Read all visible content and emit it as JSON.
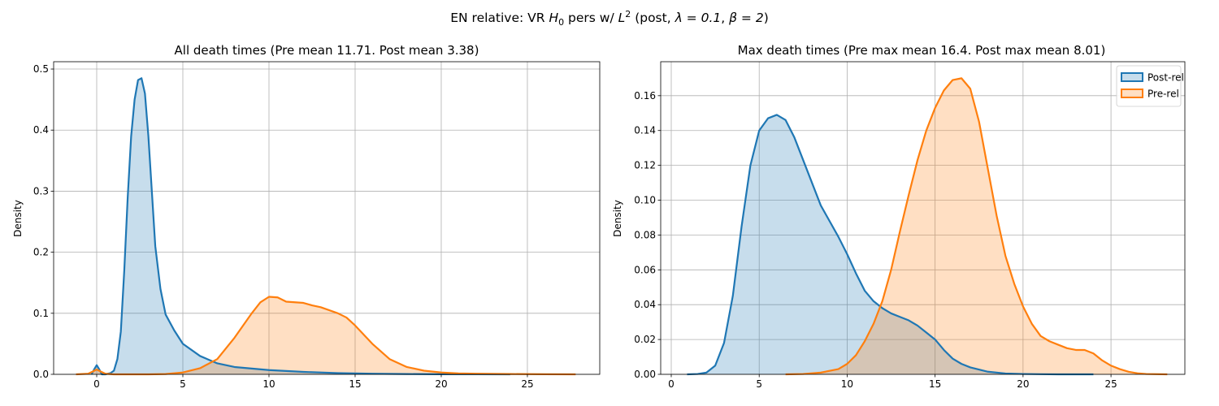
{
  "figure": {
    "suptitle_prefix": "EN relative: VR ",
    "suptitle_h": "H",
    "suptitle_h_sub": "0",
    "suptitle_mid": " pers w/ ",
    "suptitle_l": "L",
    "suptitle_l_sup": "2",
    "suptitle_post": " (post, ",
    "suptitle_lambda": "λ = 0.1",
    "suptitle_sep": ", ",
    "suptitle_beta": "β = 2",
    "suptitle_end": ")"
  },
  "colors": {
    "post": "#1f77b4",
    "pre": "#ff7f0e",
    "grid": "#b0b0b0"
  },
  "chart_data": [
    {
      "type": "area",
      "title": "All death times (Pre mean 11.71. Post mean 3.38)",
      "xlabel": "",
      "ylabel": "Density",
      "xlim": [
        -2.5,
        29.2
      ],
      "ylim": [
        0,
        0.512
      ],
      "xticks": [
        0,
        5,
        10,
        15,
        20,
        25
      ],
      "yticks": [
        0.0,
        0.1,
        0.2,
        0.3,
        0.4,
        0.5
      ],
      "yticklabels": [
        "0.0",
        "0.1",
        "0.2",
        "0.3",
        "0.4",
        "0.5"
      ],
      "grid": true,
      "legend": false,
      "series": [
        {
          "key": "post",
          "x": [
            -0.3,
            -0.15,
            0,
            0.15,
            0.3,
            0.5,
            0.8,
            1.0,
            1.2,
            1.4,
            1.6,
            1.8,
            2.0,
            2.2,
            2.4,
            2.6,
            2.8,
            3.0,
            3.2,
            3.4,
            3.7,
            4.0,
            4.5,
            5.0,
            6.0,
            7.0,
            8.0,
            10.0,
            12.0,
            14.0,
            16.0,
            18.0,
            20.0,
            22.0,
            24.0
          ],
          "y": [
            0.0,
            0.008,
            0.015,
            0.008,
            0.0,
            0.0,
            0.002,
            0.006,
            0.025,
            0.07,
            0.17,
            0.29,
            0.39,
            0.45,
            0.482,
            0.485,
            0.46,
            0.39,
            0.3,
            0.21,
            0.14,
            0.098,
            0.072,
            0.05,
            0.03,
            0.018,
            0.012,
            0.007,
            0.004,
            0.002,
            0.001,
            0.0005,
            0.0002,
            0.0001,
            0.0
          ]
        },
        {
          "key": "pre",
          "x": [
            -1.2,
            -0.5,
            -0.2,
            0.0,
            0.2,
            0.5,
            1.0,
            3.0,
            4.0,
            5.0,
            6.0,
            7.0,
            8.0,
            9.0,
            9.5,
            10.0,
            10.5,
            11.0,
            12.0,
            12.5,
            13.0,
            14.0,
            14.5,
            15.0,
            16.0,
            17.0,
            18.0,
            19.0,
            20.0,
            21.0,
            22.0,
            24.0,
            26.0,
            27.8
          ],
          "y": [
            0.0,
            0.001,
            0.005,
            0.008,
            0.005,
            0.001,
            0.0,
            0.0,
            0.0005,
            0.003,
            0.01,
            0.025,
            0.06,
            0.1,
            0.118,
            0.127,
            0.126,
            0.119,
            0.117,
            0.113,
            0.11,
            0.1,
            0.093,
            0.08,
            0.05,
            0.025,
            0.012,
            0.006,
            0.003,
            0.0015,
            0.001,
            0.0005,
            0.0002,
            0.0
          ]
        }
      ]
    },
    {
      "type": "area",
      "title": "Max death times (Pre max mean 16.4. Post max mean 8.01)",
      "xlabel": "",
      "ylabel": "Density",
      "xlim": [
        -0.6,
        29.2
      ],
      "ylim": [
        0,
        0.1795
      ],
      "xticks": [
        0,
        5,
        10,
        15,
        20,
        25
      ],
      "yticks": [
        0.0,
        0.02,
        0.04,
        0.06,
        0.08,
        0.1,
        0.12,
        0.14,
        0.16
      ],
      "yticklabels": [
        "0.00",
        "0.02",
        "0.04",
        "0.06",
        "0.08",
        "0.10",
        "0.12",
        "0.14",
        "0.16"
      ],
      "grid": true,
      "legend": true,
      "legend_loc": "upper right",
      "legend_entries": [
        "Post-rel",
        "Pre-rel"
      ],
      "series": [
        {
          "key": "post",
          "name": "Post-rel",
          "x": [
            0.9,
            1.5,
            2.0,
            2.5,
            3.0,
            3.5,
            4.0,
            4.5,
            5.0,
            5.5,
            6.0,
            6.5,
            7.0,
            7.5,
            8.0,
            8.5,
            9.0,
            9.5,
            10.0,
            10.5,
            11.0,
            11.5,
            12.0,
            12.5,
            13.0,
            13.5,
            14.0,
            14.5,
            15.0,
            15.5,
            16.0,
            16.5,
            17.0,
            18.0,
            19.0,
            20.0,
            21.0,
            22.0,
            23.0,
            24.0
          ],
          "y": [
            0.0,
            0.0002,
            0.001,
            0.005,
            0.018,
            0.045,
            0.085,
            0.12,
            0.14,
            0.147,
            0.149,
            0.146,
            0.136,
            0.123,
            0.11,
            0.097,
            0.088,
            0.079,
            0.069,
            0.058,
            0.048,
            0.042,
            0.038,
            0.035,
            0.033,
            0.031,
            0.028,
            0.024,
            0.02,
            0.014,
            0.009,
            0.006,
            0.004,
            0.0015,
            0.0005,
            0.0002,
            0.0001,
            0.0,
            0.0,
            0.0
          ]
        },
        {
          "key": "pre",
          "name": "Pre-rel",
          "x": [
            6.5,
            7.5,
            8.5,
            9.5,
            10.0,
            10.5,
            11.0,
            11.5,
            12.0,
            12.5,
            13.0,
            13.5,
            14.0,
            14.5,
            15.0,
            15.5,
            16.0,
            16.5,
            17.0,
            17.5,
            18.0,
            18.5,
            19.0,
            19.5,
            20.0,
            20.5,
            21.0,
            21.5,
            22.0,
            22.5,
            23.0,
            23.5,
            24.0,
            24.5,
            25.0,
            25.5,
            26.0,
            26.5,
            27.0,
            28.2
          ],
          "y": [
            0.0,
            0.0002,
            0.001,
            0.003,
            0.006,
            0.011,
            0.019,
            0.029,
            0.042,
            0.06,
            0.082,
            0.103,
            0.123,
            0.14,
            0.153,
            0.163,
            0.169,
            0.17,
            0.164,
            0.145,
            0.118,
            0.091,
            0.068,
            0.052,
            0.039,
            0.029,
            0.022,
            0.019,
            0.017,
            0.015,
            0.014,
            0.014,
            0.012,
            0.008,
            0.005,
            0.003,
            0.0015,
            0.0006,
            0.0002,
            0.0
          ]
        }
      ]
    }
  ]
}
